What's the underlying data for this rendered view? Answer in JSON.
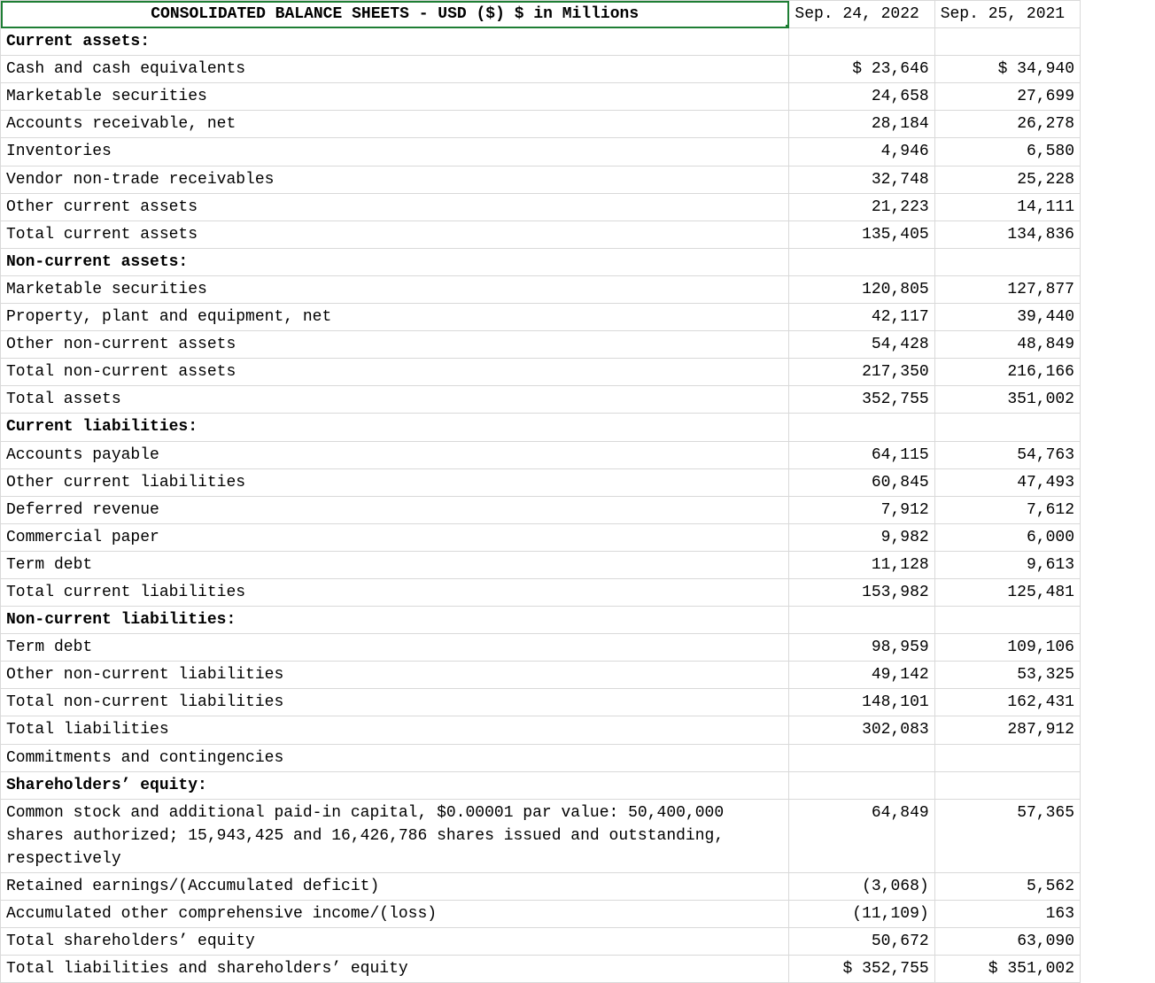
{
  "colors": {
    "selection_border": "#1e7e34",
    "grid": "#d9d9d9",
    "bg": "#ffffff",
    "text": "#000000"
  },
  "title": "CONSOLIDATED BALANCE SHEETS - USD ($) $ in Millions",
  "columns": {
    "b": "Sep. 24, 2022",
    "c": "Sep. 25, 2021"
  },
  "rows": [
    {
      "label": "Current assets:",
      "section": true,
      "b": "",
      "c": ""
    },
    {
      "label": "Cash and cash equivalents",
      "b": "$ 23,646",
      "c": "$ 34,940"
    },
    {
      "label": "Marketable securities",
      "b": "24,658",
      "c": "27,699"
    },
    {
      "label": "Accounts receivable, net",
      "b": "28,184",
      "c": "26,278"
    },
    {
      "label": "Inventories",
      "b": "4,946",
      "c": "6,580"
    },
    {
      "label": "Vendor non-trade receivables",
      "b": "32,748",
      "c": "25,228"
    },
    {
      "label": "Other current assets",
      "b": "21,223",
      "c": "14,111"
    },
    {
      "label": "Total current assets",
      "b": "135,405",
      "c": "134,836"
    },
    {
      "label": "Non-current assets:",
      "section": true,
      "b": "",
      "c": ""
    },
    {
      "label": "Marketable securities",
      "b": "120,805",
      "c": "127,877"
    },
    {
      "label": "Property, plant and equipment, net",
      "b": "42,117",
      "c": "39,440"
    },
    {
      "label": "Other non-current assets",
      "b": "54,428",
      "c": "48,849"
    },
    {
      "label": "Total non-current assets",
      "b": "217,350",
      "c": "216,166"
    },
    {
      "label": "Total assets",
      "b": "352,755",
      "c": "351,002"
    },
    {
      "label": "Current liabilities:",
      "section": true,
      "b": "",
      "c": ""
    },
    {
      "label": "Accounts payable",
      "b": "64,115",
      "c": "54,763"
    },
    {
      "label": "Other current liabilities",
      "b": "60,845",
      "c": "47,493"
    },
    {
      "label": "Deferred revenue",
      "b": "7,912",
      "c": "7,612"
    },
    {
      "label": "Commercial paper",
      "b": "9,982",
      "c": "6,000"
    },
    {
      "label": "Term debt",
      "b": "11,128",
      "c": "9,613"
    },
    {
      "label": "Total current liabilities",
      "b": "153,982",
      "c": "125,481"
    },
    {
      "label": "Non-current liabilities:",
      "section": true,
      "b": "",
      "c": ""
    },
    {
      "label": "Term debt",
      "b": "98,959",
      "c": "109,106"
    },
    {
      "label": "Other non-current liabilities",
      "b": "49,142",
      "c": "53,325"
    },
    {
      "label": "Total non-current liabilities",
      "b": "148,101",
      "c": "162,431"
    },
    {
      "label": "Total liabilities",
      "b": "302,083",
      "c": "287,912"
    },
    {
      "label": "Commitments and contingencies",
      "b": "",
      "c": ""
    },
    {
      "label": "Shareholders’ equity:",
      "section": true,
      "b": "",
      "c": ""
    },
    {
      "label": "Common stock and additional paid-in capital, $0.00001 par value: 50,400,000 shares authorized; 15,943,425 and 16,426,786 shares issued and outstanding, respectively",
      "b": "64,849",
      "c": "57,365",
      "tall": true
    },
    {
      "label": "Retained earnings/(Accumulated deficit)",
      "b": "(3,068)",
      "c": "5,562"
    },
    {
      "label": "Accumulated other comprehensive income/(loss)",
      "b": "(11,109)",
      "c": "163"
    },
    {
      "label": "Total shareholders’ equity",
      "b": "50,672",
      "c": "63,090"
    },
    {
      "label": "Total liabilities and shareholders’ equity",
      "b": "$ 352,755",
      "c": "$ 351,002"
    }
  ]
}
